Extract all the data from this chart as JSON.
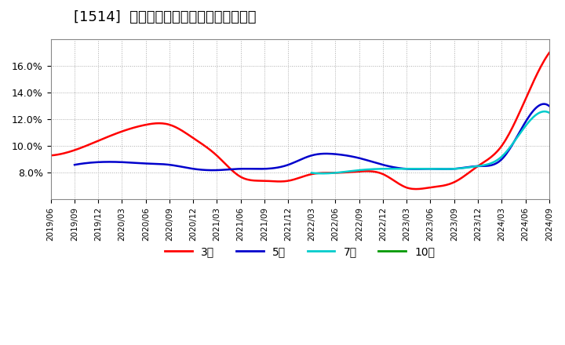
{
  "title": "[1514]  経常利益マージンの平均値の推移",
  "title_fontsize": 13,
  "background_color": "#ffffff",
  "plot_bg_color": "#ffffff",
  "grid_color": "#aaaaaa",
  "ylim": [
    0.06,
    0.18
  ],
  "yticks": [
    0.08,
    0.1,
    0.12,
    0.14,
    0.16
  ],
  "ytick_labels": [
    "8.0%",
    "10.0%",
    "12.0%",
    "14.0%",
    "16.0%"
  ],
  "legend_labels": [
    "3年",
    "5年",
    "7年",
    "10年"
  ],
  "legend_colors": [
    "#ff0000",
    "#0000cc",
    "#00cccc",
    "#009900"
  ],
  "series": {
    "3year": {
      "color": "#ff0000",
      "dates": [
        "2019/06",
        "2019/09",
        "2019/12",
        "2020/03",
        "2020/06",
        "2020/09",
        "2020/12",
        "2021/03",
        "2021/06",
        "2021/09",
        "2021/12",
        "2022/03",
        "2022/06",
        "2022/09",
        "2022/12",
        "2023/03",
        "2023/06",
        "2023/09",
        "2023/12",
        "2024/03",
        "2024/06",
        "2024/09"
      ],
      "values": [
        0.093,
        0.097,
        0.104,
        0.111,
        0.116,
        0.116,
        0.106,
        0.093,
        0.077,
        0.074,
        0.074,
        0.079,
        0.08,
        0.081,
        0.079,
        0.069,
        0.069,
        0.073,
        0.085,
        0.1,
        0.135,
        0.17
      ]
    },
    "5year": {
      "color": "#0000cc",
      "dates": [
        "2019/06",
        "2019/09",
        "2019/12",
        "2020/03",
        "2020/06",
        "2020/09",
        "2020/12",
        "2021/03",
        "2021/06",
        "2021/09",
        "2021/12",
        "2022/03",
        "2022/06",
        "2022/09",
        "2022/12",
        "2023/03",
        "2023/06",
        "2023/09",
        "2023/12",
        "2024/03",
        "2024/06",
        "2024/09"
      ],
      "values": [
        null,
        null,
        null,
        null,
        null,
        null,
        null,
        null,
        null,
        null,
        null,
        null,
        null,
        null,
        null,
        null,
        null,
        null,
        null,
        null,
        null,
        null
      ]
    },
    "5year_data": {
      "color": "#0000cc",
      "dates": [
        "2019/09",
        "2019/12",
        "2020/03",
        "2020/06",
        "2020/09",
        "2020/12",
        "2021/03",
        "2021/06",
        "2021/09",
        "2021/12",
        "2022/03",
        "2022/06",
        "2022/09",
        "2022/12",
        "2023/03",
        "2023/06",
        "2023/09",
        "2023/12",
        "2024/03",
        "2024/06",
        "2024/09"
      ],
      "values": [
        0.086,
        0.088,
        0.088,
        0.087,
        0.086,
        0.083,
        0.082,
        0.083,
        0.083,
        0.086,
        0.093,
        0.094,
        0.091,
        0.086,
        0.083,
        0.083,
        0.083,
        0.085,
        0.09,
        0.118,
        0.13
      ]
    },
    "7year": {
      "color": "#00cccc",
      "dates": [
        "2022/03",
        "2022/06",
        "2022/09",
        "2022/12",
        "2023/03",
        "2023/06",
        "2023/09",
        "2023/12",
        "2024/03",
        "2024/06",
        "2024/09"
      ],
      "values": [
        0.08,
        0.08,
        0.082,
        0.083,
        0.083,
        0.083,
        0.083,
        0.085,
        0.092,
        0.115,
        0.125
      ]
    },
    "10year": {
      "color": "#009900",
      "dates": [],
      "values": []
    }
  }
}
